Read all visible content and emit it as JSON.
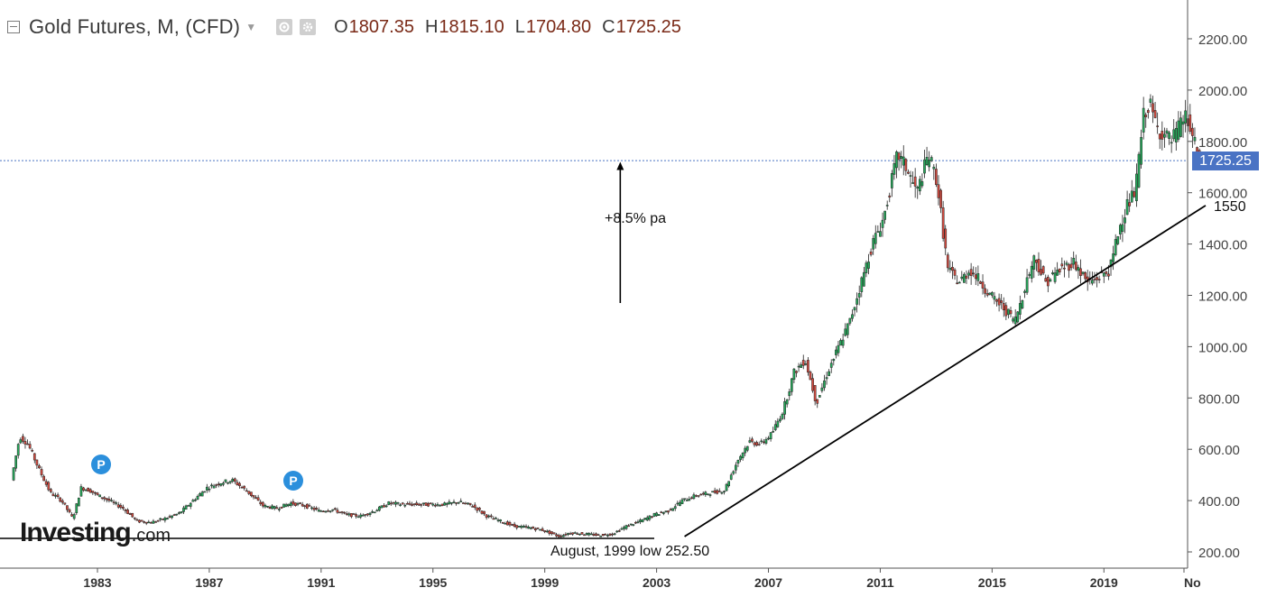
{
  "header": {
    "title": "Gold Futures, M, (CFD)",
    "ohlc": [
      {
        "label": "O",
        "value": "1807.35"
      },
      {
        "label": "H",
        "value": "1815.10"
      },
      {
        "label": "L",
        "value": "1704.80"
      },
      {
        "label": "C",
        "value": "1725.25"
      }
    ]
  },
  "logo": {
    "main": "Investing",
    "suffix": ".com"
  },
  "markers": [
    {
      "label": "P",
      "x": 1983.3,
      "y": 520
    },
    {
      "label": "P",
      "x": 1990.3,
      "y": 470
    }
  ],
  "annotations": {
    "growth": "+8.5% pa",
    "low": "August, 1999 low 252.50",
    "trend_end": "1550",
    "last_price": "1725.25"
  },
  "colors": {
    "up": "#26a95b",
    "down": "#d24a3f",
    "price_line": "#4a73c4",
    "badge": "#4a73c4",
    "marker": "#2b8fdc"
  },
  "chart_data": {
    "type": "line",
    "title": "Gold Futures, M, (CFD)",
    "xlabel": "",
    "ylabel": "",
    "xlim": [
      1980,
      2022.5
    ],
    "ylim": [
      160,
      2250
    ],
    "x_ticks": [
      "1983",
      "1987",
      "1991",
      "1995",
      "1999",
      "2003",
      "2007",
      "2011",
      "2015",
      "2019",
      "No"
    ],
    "y_ticks": [
      "2200.00",
      "2000.00",
      "1800.00",
      "1600.00",
      "1400.00",
      "1200.00",
      "1000.00",
      "800.00",
      "600.00",
      "400.00",
      "200.00"
    ],
    "series": [
      {
        "x": [
          1980.0,
          1980.3,
          1980.6,
          1981.0,
          1981.4,
          1981.8,
          1982.2,
          1982.5,
          1982.8,
          1983.1,
          1983.5,
          1984.0,
          1984.5,
          1985.0,
          1985.5,
          1986.0,
          1986.5,
          1987.0,
          1987.5,
          1987.9,
          1988.4,
          1989.0,
          1989.5,
          1990.0,
          1990.5,
          1991.0,
          1991.5,
          1992.0,
          1992.5,
          1993.0,
          1993.5,
          1994.0,
          1994.5,
          1995.0,
          1995.5,
          1996.0,
          1996.5,
          1997.0,
          1997.5,
          1998.0,
          1998.5,
          1999.0,
          1999.6,
          2000.0,
          2000.5,
          2001.0,
          2001.5,
          2002.0,
          2002.5,
          2003.0,
          2003.5,
          2004.0,
          2004.5,
          2005.0,
          2005.5,
          2006.0,
          2006.4,
          2006.8,
          2007.2,
          2007.6,
          2008.0,
          2008.4,
          2008.8,
          2009.2,
          2009.6,
          2010.0,
          2010.4,
          2010.8,
          2011.2,
          2011.7,
          2012.0,
          2012.4,
          2012.8,
          2013.1,
          2013.5,
          2013.9,
          2014.3,
          2014.7,
          2015.0,
          2015.5,
          2015.9,
          2016.3,
          2016.6,
          2017.0,
          2017.5,
          2018.0,
          2018.5,
          2018.9,
          2019.3,
          2019.6,
          2019.9,
          2020.2,
          2020.5,
          2020.7,
          2021.0,
          2021.5,
          2022.0,
          2022.3,
          2022.5
        ],
        "values": [
          480,
          650,
          620,
          520,
          430,
          400,
          330,
          450,
          440,
          420,
          400,
          370,
          320,
          315,
          330,
          350,
          400,
          450,
          470,
          480,
          440,
          380,
          370,
          390,
          380,
          360,
          365,
          345,
          340,
          360,
          390,
          385,
          385,
          385,
          385,
          395,
          380,
          340,
          320,
          300,
          295,
          285,
          260,
          275,
          270,
          265,
          270,
          300,
          320,
          345,
          360,
          400,
          420,
          430,
          440,
          560,
          630,
          620,
          660,
          750,
          900,
          950,
          780,
          900,
          1000,
          1100,
          1250,
          1400,
          1500,
          1750,
          1700,
          1600,
          1750,
          1650,
          1300,
          1250,
          1300,
          1250,
          1200,
          1150,
          1100,
          1250,
          1350,
          1250,
          1300,
          1330,
          1250,
          1270,
          1300,
          1450,
          1550,
          1600,
          1900,
          1950,
          1850,
          1800,
          1900,
          1800,
          1725
        ]
      }
    ],
    "current_price": 1725.25,
    "trendline": {
      "from": {
        "x": 2004.0,
        "y": 260
      },
      "to": {
        "x": 2022.5,
        "y": 1550
      }
    },
    "support_line": {
      "y": 252.5
    },
    "arrow": {
      "x": 2001.7,
      "from": 1170,
      "to": 1720
    }
  }
}
